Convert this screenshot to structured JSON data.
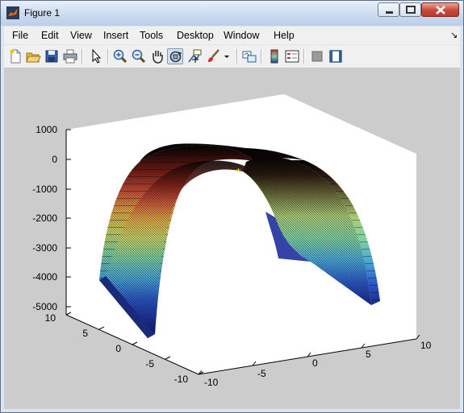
{
  "window": {
    "title": "Figure 1"
  },
  "menubar": {
    "items": [
      {
        "label": "File"
      },
      {
        "label": "Edit"
      },
      {
        "label": "View"
      },
      {
        "label": "Insert"
      },
      {
        "label": "Tools"
      },
      {
        "label": "Desktop"
      },
      {
        "label": "Window"
      },
      {
        "label": "Help"
      }
    ]
  },
  "toolbar": {
    "buttons": [
      {
        "icon": "new-figure-icon"
      },
      {
        "icon": "open-file-icon"
      },
      {
        "icon": "save-icon"
      },
      {
        "icon": "print-icon"
      },
      {
        "icon": "edit-plot-arrow-icon"
      },
      {
        "icon": "zoom-in-icon"
      },
      {
        "icon": "zoom-out-icon"
      },
      {
        "icon": "pan-hand-icon"
      },
      {
        "icon": "rotate-3d-icon"
      },
      {
        "icon": "data-cursor-icon"
      },
      {
        "icon": "brush-icon"
      },
      {
        "icon": "link-plot-icon"
      },
      {
        "icon": "colorbar-icon"
      },
      {
        "icon": "legend-icon"
      },
      {
        "icon": "hide-plot-tools-icon"
      },
      {
        "icon": "show-plot-tools-icon"
      }
    ],
    "active": "rotate-3d-icon"
  },
  "plot": {
    "z_ticks": [
      "1000",
      "0",
      "-1000",
      "-2000",
      "-3000",
      "-4000",
      "-5000"
    ],
    "y_ticks": [
      "10",
      "5",
      "0",
      "-5",
      "-10"
    ],
    "x_ticks": [
      "-10",
      "-5",
      "0",
      "5",
      "10"
    ],
    "colormap": "jet",
    "background": "#cccccc",
    "axes_face": "#ffffff"
  },
  "chart_data": {
    "type": "surface",
    "x_range": [
      -10,
      10
    ],
    "y_range": [
      -10,
      10
    ],
    "zlim": [
      -5000,
      1000
    ],
    "z_ticks": [
      1000,
      0,
      -1000,
      -2000,
      -3000,
      -4000,
      -5000
    ],
    "x_ticks": [
      -10,
      -5,
      0,
      5,
      10
    ],
    "y_ticks": [
      -10,
      -5,
      0,
      5,
      10
    ],
    "surface": "inverted paraboloid trough, z ≈ 0 along x ≈ 0 and z ≈ -4000 at |x| = 10, nearly constant along y",
    "marker": {
      "symbol": "*",
      "color": "yellow",
      "x": 0,
      "y": 0,
      "z": 0
    },
    "grid": false
  }
}
